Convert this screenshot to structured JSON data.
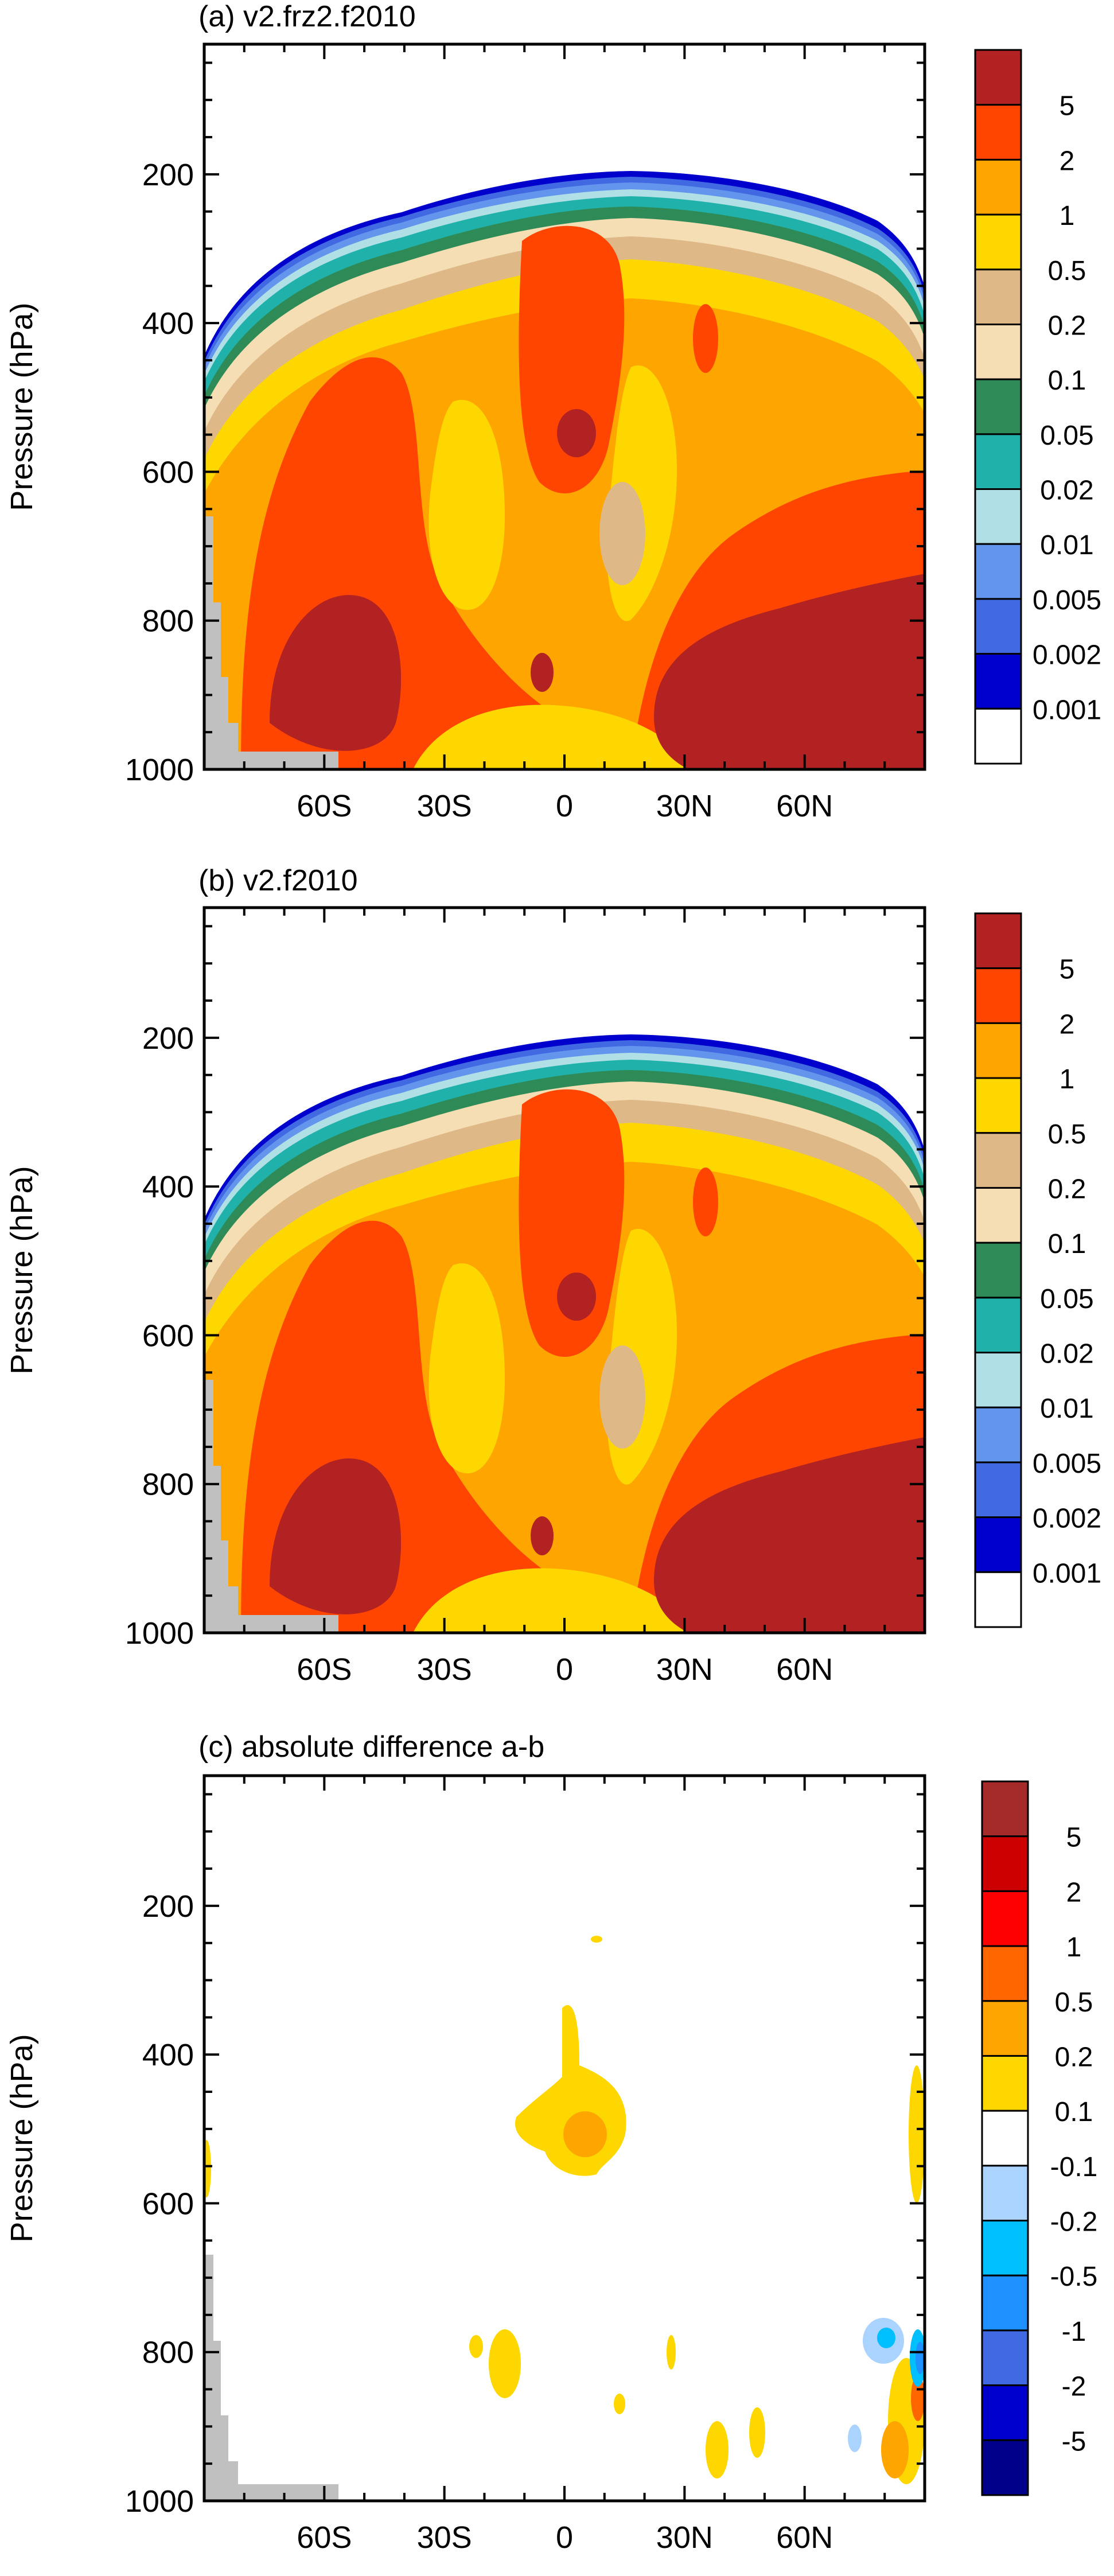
{
  "chart_data": [
    {
      "type": "heatmap",
      "title": "(a) v2.frz2.f2010",
      "ylabel": "Pressure (hPa)",
      "xlabel": "",
      "x_ticks": [
        "60S",
        "30S",
        "0",
        "30N",
        "60N"
      ],
      "x_tick_values": [
        -60,
        -30,
        0,
        30,
        60
      ],
      "xlim": [
        -90,
        90
      ],
      "y_ticks": [
        "200",
        "400",
        "600",
        "800",
        "1000"
      ],
      "y_tick_values": [
        200,
        400,
        600,
        800,
        1000
      ],
      "ylim": [
        25,
        1000
      ],
      "y_reversed": true,
      "colorbar": {
        "labels": [
          "5",
          "2",
          "1",
          "0.5",
          "0.2",
          "0.1",
          "0.05",
          "0.02",
          "0.01",
          "0.005",
          "0.002",
          "0.001"
        ],
        "colors": [
          "#b22222",
          "#ff4500",
          "#ffa500",
          "#ffd700",
          "#deb887",
          "#f5deb3",
          "#2e8b57",
          "#20b2aa",
          "#b0e0e6",
          "#6495ed",
          "#4169e1",
          "#0000cd",
          "#ffffff"
        ]
      }
    },
    {
      "type": "heatmap",
      "title": "(b) v2.f2010",
      "ylabel": "Pressure (hPa)",
      "xlabel": "",
      "x_ticks": [
        "60S",
        "30S",
        "0",
        "30N",
        "60N"
      ],
      "x_tick_values": [
        -60,
        -30,
        0,
        30,
        60
      ],
      "xlim": [
        -90,
        90
      ],
      "y_ticks": [
        "200",
        "400",
        "600",
        "800",
        "1000"
      ],
      "y_tick_values": [
        200,
        400,
        600,
        800,
        1000
      ],
      "ylim": [
        25,
        1000
      ],
      "y_reversed": true,
      "colorbar": {
        "labels": [
          "5",
          "2",
          "1",
          "0.5",
          "0.2",
          "0.1",
          "0.05",
          "0.02",
          "0.01",
          "0.005",
          "0.002",
          "0.001"
        ],
        "colors": [
          "#b22222",
          "#ff4500",
          "#ffa500",
          "#ffd700",
          "#deb887",
          "#f5deb3",
          "#2e8b57",
          "#20b2aa",
          "#b0e0e6",
          "#6495ed",
          "#4169e1",
          "#0000cd",
          "#ffffff"
        ]
      }
    },
    {
      "type": "heatmap",
      "title": "(c) absolute difference a-b",
      "ylabel": "Pressure (hPa)",
      "xlabel": "",
      "x_ticks": [
        "60S",
        "30S",
        "0",
        "30N",
        "60N"
      ],
      "x_tick_values": [
        -60,
        -30,
        0,
        30,
        60
      ],
      "xlim": [
        -90,
        90
      ],
      "y_ticks": [
        "200",
        "400",
        "600",
        "800",
        "1000"
      ],
      "y_tick_values": [
        200,
        400,
        600,
        800,
        1000
      ],
      "ylim": [
        25,
        1000
      ],
      "y_reversed": true,
      "colorbar": {
        "labels": [
          "5",
          "2",
          "1",
          "0.5",
          "0.2",
          "0.1",
          "-0.1",
          "-0.2",
          "-0.5",
          "-1",
          "-2",
          "-5"
        ],
        "colors": [
          "#a52a2a",
          "#cd0000",
          "#ff0000",
          "#ff6600",
          "#ffa500",
          "#ffd700",
          "#ffffff",
          "#aad4ff",
          "#00bfff",
          "#1e90ff",
          "#4169e1",
          "#0000cd",
          "#00008b"
        ]
      }
    }
  ]
}
